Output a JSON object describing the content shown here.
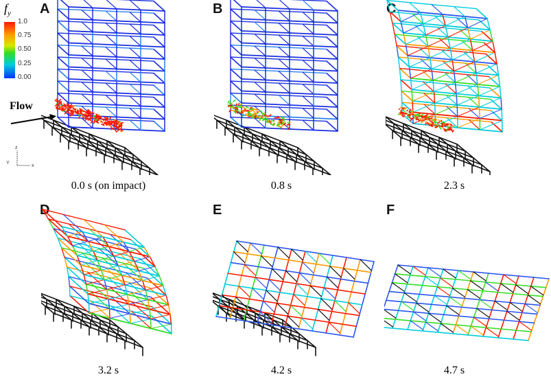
{
  "colorbar": {
    "symbol": "f",
    "subscript": "y",
    "ticks": [
      "1.0",
      "0.75",
      "0.50",
      "0.25",
      "0.00"
    ],
    "colors": [
      "#ff1a00",
      "#ff9900",
      "#33dd22",
      "#00ccdd",
      "#0033ff"
    ]
  },
  "flow_label": "Flow",
  "triad": {
    "z": "z",
    "y": "Y",
    "x": "x"
  },
  "panels": [
    {
      "letter": "A",
      "time": "0.0 s (on impact)"
    },
    {
      "letter": "B",
      "time": "0.8 s"
    },
    {
      "letter": "C",
      "time": "2.3 s"
    },
    {
      "letter": "D",
      "time": "3.2 s"
    },
    {
      "letter": "E",
      "time": "4.2 s"
    },
    {
      "letter": "F",
      "time": "4.7 s"
    }
  ]
}
